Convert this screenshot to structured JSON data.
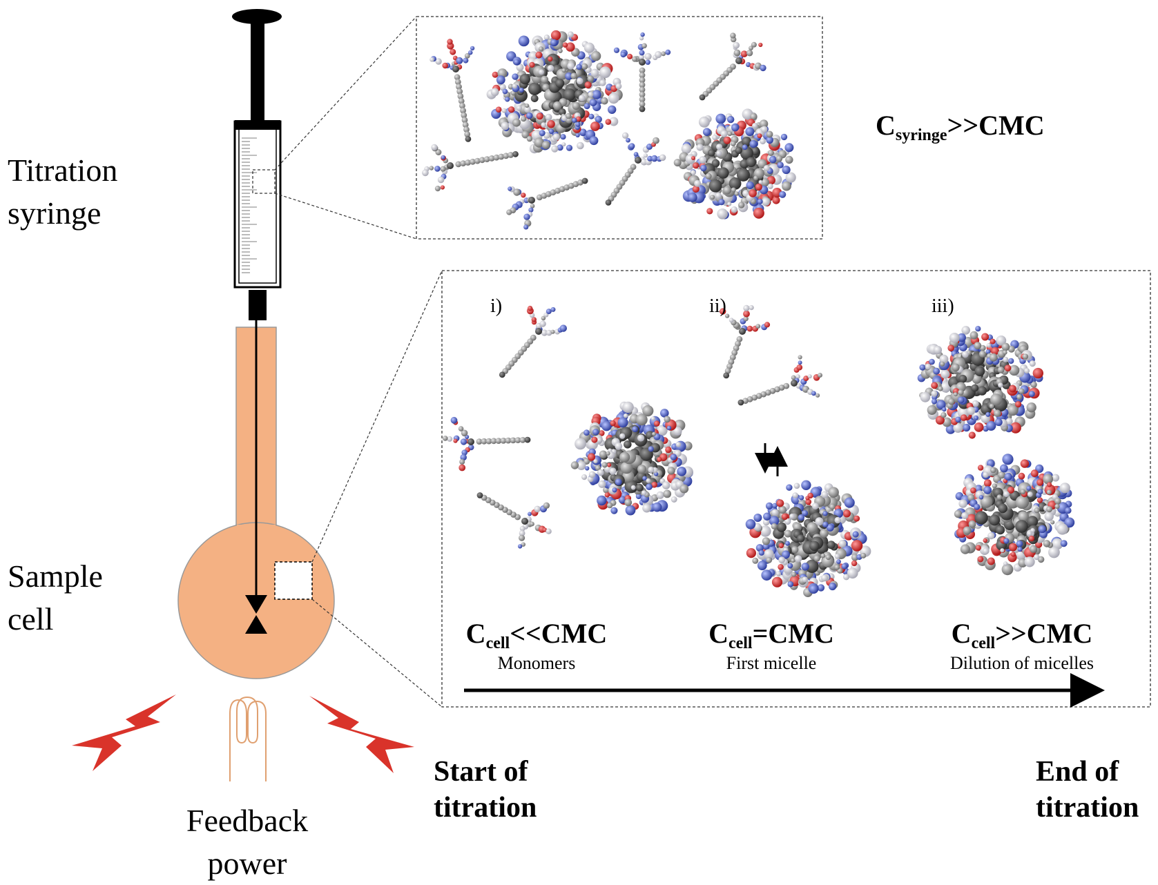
{
  "labels": {
    "titration_syringe": [
      "Titration",
      "syringe"
    ],
    "sample_cell": [
      "Sample",
      "cell"
    ],
    "feedback_power": [
      "Feedback",
      "power"
    ],
    "start_of_titration": [
      "Start of",
      "titration"
    ],
    "end_of_titration": [
      "End of",
      "titration"
    ]
  },
  "syringe_box": {
    "equation": {
      "main": "C",
      "sub": "syringe",
      "rest": ">>CMC"
    }
  },
  "cell_box": {
    "stages": [
      {
        "roman": "i)",
        "eq_main": "C",
        "eq_sub": "cell",
        "eq_rest": "<<CMC",
        "description": "Monomers"
      },
      {
        "roman": "ii)",
        "eq_main": "C",
        "eq_sub": "cell",
        "eq_rest": "=CMC",
        "description": "First micelle"
      },
      {
        "roman": "iii)",
        "eq_main": "C",
        "eq_sub": "cell",
        "eq_rest": ">>CMC",
        "description": "Dilution of micelles"
      }
    ]
  },
  "colors": {
    "cell_fill": "#f4b183",
    "lightning": "#d9332a",
    "heater_coil": "#e0a070",
    "atom_red": "#d62728",
    "atom_blue": "#4a5fc8",
    "atom_white": "#e8e8f0",
    "atom_gray": "#7a7a7a",
    "atom_dark": "#4a4a4a"
  }
}
